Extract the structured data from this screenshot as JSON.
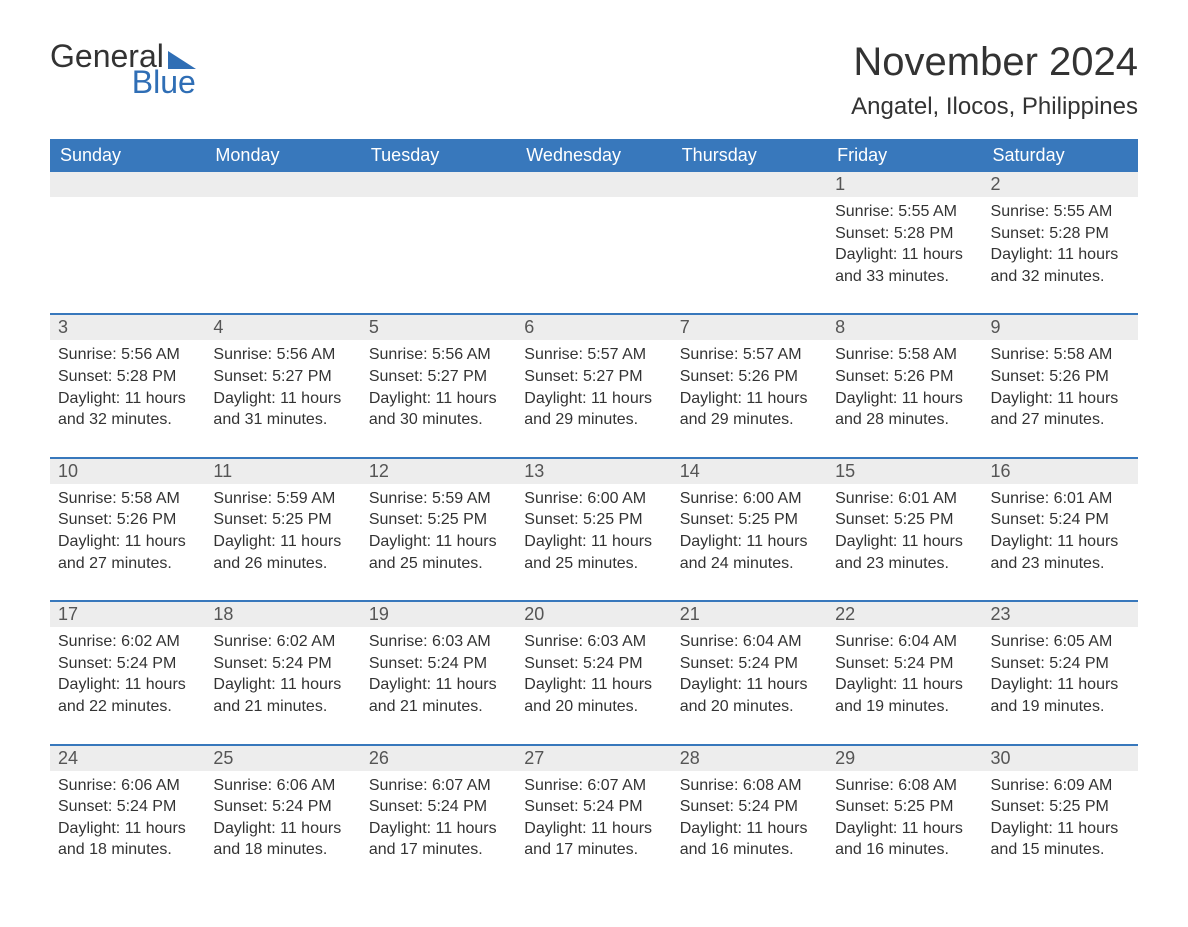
{
  "brand": {
    "word1": "General",
    "word2": "Blue",
    "accent_color": "#2f6eb5"
  },
  "title": "November 2024",
  "location": "Angatel, Ilocos, Philippines",
  "colors": {
    "header_bg": "#3878bc",
    "header_text": "#ffffff",
    "daybar_bg": "#ededed",
    "daybar_text": "#555555",
    "body_text": "#333333",
    "rule": "#3878bc"
  },
  "layout": {
    "cols": 7,
    "rows": 5,
    "first_weekday_index": 5
  },
  "weekdays": [
    "Sunday",
    "Monday",
    "Tuesday",
    "Wednesday",
    "Thursday",
    "Friday",
    "Saturday"
  ],
  "days": [
    {
      "n": 1,
      "sunrise": "5:55 AM",
      "sunset": "5:28 PM",
      "daylight": "11 hours and 33 minutes."
    },
    {
      "n": 2,
      "sunrise": "5:55 AM",
      "sunset": "5:28 PM",
      "daylight": "11 hours and 32 minutes."
    },
    {
      "n": 3,
      "sunrise": "5:56 AM",
      "sunset": "5:28 PM",
      "daylight": "11 hours and 32 minutes."
    },
    {
      "n": 4,
      "sunrise": "5:56 AM",
      "sunset": "5:27 PM",
      "daylight": "11 hours and 31 minutes."
    },
    {
      "n": 5,
      "sunrise": "5:56 AM",
      "sunset": "5:27 PM",
      "daylight": "11 hours and 30 minutes."
    },
    {
      "n": 6,
      "sunrise": "5:57 AM",
      "sunset": "5:27 PM",
      "daylight": "11 hours and 29 minutes."
    },
    {
      "n": 7,
      "sunrise": "5:57 AM",
      "sunset": "5:26 PM",
      "daylight": "11 hours and 29 minutes."
    },
    {
      "n": 8,
      "sunrise": "5:58 AM",
      "sunset": "5:26 PM",
      "daylight": "11 hours and 28 minutes."
    },
    {
      "n": 9,
      "sunrise": "5:58 AM",
      "sunset": "5:26 PM",
      "daylight": "11 hours and 27 minutes."
    },
    {
      "n": 10,
      "sunrise": "5:58 AM",
      "sunset": "5:26 PM",
      "daylight": "11 hours and 27 minutes."
    },
    {
      "n": 11,
      "sunrise": "5:59 AM",
      "sunset": "5:25 PM",
      "daylight": "11 hours and 26 minutes."
    },
    {
      "n": 12,
      "sunrise": "5:59 AM",
      "sunset": "5:25 PM",
      "daylight": "11 hours and 25 minutes."
    },
    {
      "n": 13,
      "sunrise": "6:00 AM",
      "sunset": "5:25 PM",
      "daylight": "11 hours and 25 minutes."
    },
    {
      "n": 14,
      "sunrise": "6:00 AM",
      "sunset": "5:25 PM",
      "daylight": "11 hours and 24 minutes."
    },
    {
      "n": 15,
      "sunrise": "6:01 AM",
      "sunset": "5:25 PM",
      "daylight": "11 hours and 23 minutes."
    },
    {
      "n": 16,
      "sunrise": "6:01 AM",
      "sunset": "5:24 PM",
      "daylight": "11 hours and 23 minutes."
    },
    {
      "n": 17,
      "sunrise": "6:02 AM",
      "sunset": "5:24 PM",
      "daylight": "11 hours and 22 minutes."
    },
    {
      "n": 18,
      "sunrise": "6:02 AM",
      "sunset": "5:24 PM",
      "daylight": "11 hours and 21 minutes."
    },
    {
      "n": 19,
      "sunrise": "6:03 AM",
      "sunset": "5:24 PM",
      "daylight": "11 hours and 21 minutes."
    },
    {
      "n": 20,
      "sunrise": "6:03 AM",
      "sunset": "5:24 PM",
      "daylight": "11 hours and 20 minutes."
    },
    {
      "n": 21,
      "sunrise": "6:04 AM",
      "sunset": "5:24 PM",
      "daylight": "11 hours and 20 minutes."
    },
    {
      "n": 22,
      "sunrise": "6:04 AM",
      "sunset": "5:24 PM",
      "daylight": "11 hours and 19 minutes."
    },
    {
      "n": 23,
      "sunrise": "6:05 AM",
      "sunset": "5:24 PM",
      "daylight": "11 hours and 19 minutes."
    },
    {
      "n": 24,
      "sunrise": "6:06 AM",
      "sunset": "5:24 PM",
      "daylight": "11 hours and 18 minutes."
    },
    {
      "n": 25,
      "sunrise": "6:06 AM",
      "sunset": "5:24 PM",
      "daylight": "11 hours and 18 minutes."
    },
    {
      "n": 26,
      "sunrise": "6:07 AM",
      "sunset": "5:24 PM",
      "daylight": "11 hours and 17 minutes."
    },
    {
      "n": 27,
      "sunrise": "6:07 AM",
      "sunset": "5:24 PM",
      "daylight": "11 hours and 17 minutes."
    },
    {
      "n": 28,
      "sunrise": "6:08 AM",
      "sunset": "5:24 PM",
      "daylight": "11 hours and 16 minutes."
    },
    {
      "n": 29,
      "sunrise": "6:08 AM",
      "sunset": "5:25 PM",
      "daylight": "11 hours and 16 minutes."
    },
    {
      "n": 30,
      "sunrise": "6:09 AM",
      "sunset": "5:25 PM",
      "daylight": "11 hours and 15 minutes."
    }
  ],
  "labels": {
    "sunrise": "Sunrise: ",
    "sunset": "Sunset: ",
    "daylight": "Daylight: "
  }
}
